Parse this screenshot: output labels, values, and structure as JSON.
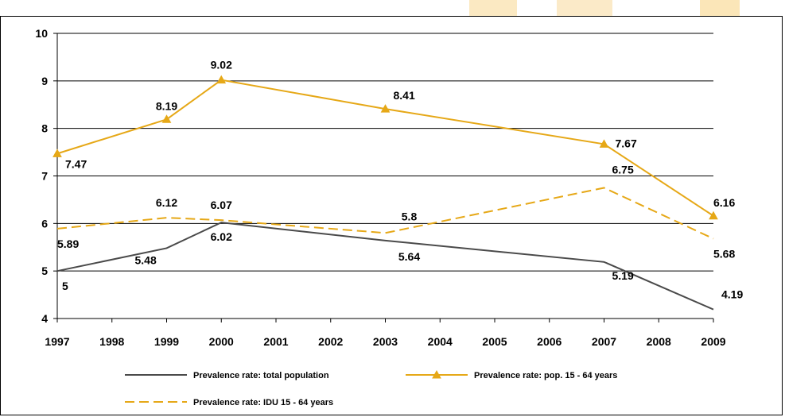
{
  "chart_data": {
    "type": "line",
    "title": "",
    "xlabel": "",
    "ylabel": "",
    "categories": [
      "1997",
      "1998",
      "1999",
      "2000",
      "2001",
      "2002",
      "2003",
      "2004",
      "2005",
      "2006",
      "2007",
      "2008",
      "2009"
    ],
    "ylim": [
      4,
      10
    ],
    "yticks": [
      4,
      5,
      6,
      7,
      8,
      9,
      10
    ],
    "grid": true,
    "legend_position": "bottom",
    "series": [
      {
        "name": "Prevalence rate: total population",
        "color": "#4a4a4a",
        "style": "solid",
        "marker": "none",
        "points": [
          {
            "x": "1997",
            "y": 5,
            "label": "5"
          },
          {
            "x": "1999",
            "y": 5.48,
            "label": "5.48"
          },
          {
            "x": "2000",
            "y": 6.02,
            "label": "6.02"
          },
          {
            "x": "2003",
            "y": 5.64,
            "label": "5.64"
          },
          {
            "x": "2007",
            "y": 5.19,
            "label": "5.19"
          },
          {
            "x": "2009",
            "y": 4.19,
            "label": "4.19"
          }
        ]
      },
      {
        "name": "Prevalence rate: pop. 15 - 64 years",
        "color": "#e6a817",
        "style": "solid",
        "marker": "triangle",
        "points": [
          {
            "x": "1997",
            "y": 7.47,
            "label": "7.47"
          },
          {
            "x": "1999",
            "y": 8.19,
            "label": "8.19"
          },
          {
            "x": "2000",
            "y": 9.02,
            "label": "9.02"
          },
          {
            "x": "2003",
            "y": 8.41,
            "label": "8.41"
          },
          {
            "x": "2007",
            "y": 7.67,
            "label": "7.67"
          },
          {
            "x": "2009",
            "y": 6.16,
            "label": "6.16"
          }
        ]
      },
      {
        "name": "Prevalence rate: IDU 15 - 64 years",
        "color": "#e6a817",
        "style": "dashed",
        "marker": "none",
        "points": [
          {
            "x": "1997",
            "y": 5.89,
            "label": "5.89"
          },
          {
            "x": "1999",
            "y": 6.12,
            "label": "6.12"
          },
          {
            "x": "2000",
            "y": 6.07,
            "label": "6.07"
          },
          {
            "x": "2003",
            "y": 5.8,
            "label": "5.8"
          },
          {
            "x": "2007",
            "y": 6.75,
            "label": "6.75"
          },
          {
            "x": "2009",
            "y": 5.68,
            "label": "5.68"
          }
        ]
      }
    ]
  }
}
